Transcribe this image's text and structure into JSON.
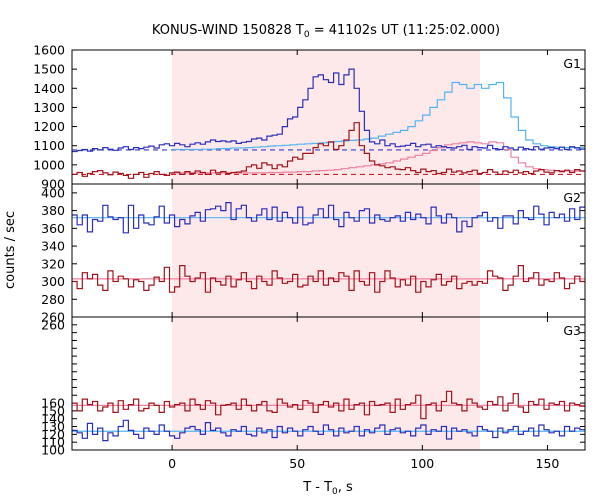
{
  "chart_data": {
    "type": "line",
    "title": {
      "prefix": "KONUS-WIND 150828 T",
      "sub": "0",
      "suffix": " = 41102s UT (11:25:02.000)"
    },
    "xlabel": {
      "prefix": "T - T",
      "sub": "0",
      "suffix": ", s"
    },
    "ylabel": "counts / sec",
    "xlim": [
      -40,
      165
    ],
    "xticks": [
      0,
      50,
      100,
      150
    ],
    "highlight_interval": [
      0,
      123
    ],
    "step_seconds": 2.944,
    "colors": {
      "highlight": "#fde9ea",
      "blue": "#2b2fb8",
      "red": "#a0141c",
      "fit_blue": "#55b4f0",
      "fit_red": "#f080a0",
      "bg_blue": "#3a3ac8",
      "bg_red": "#cc1f2a"
    },
    "panels": [
      {
        "label": "G1",
        "ylim": [
          900,
          1600
        ],
        "yticks": [
          900,
          1000,
          1100,
          1200,
          1300,
          1400,
          1500,
          1600
        ],
        "series": [
          {
            "color_key": "blue",
            "values": [
              1070,
              1075,
              1080,
              1072,
              1085,
              1078,
              1090,
              1082,
              1076,
              1088,
              1095,
              1080,
              1090,
              1085,
              1092,
              1098,
              1088,
              1105,
              1110,
              1100,
              1112,
              1105,
              1095,
              1108,
              1115,
              1108,
              1120,
              1130,
              1122,
              1125,
              1120,
              1125,
              1112,
              1118,
              1122,
              1135,
              1140,
              1130,
              1150,
              1155,
              1160,
              1200,
              1240,
              1250,
              1300,
              1340,
              1400,
              1460,
              1470,
              1445,
              1430,
              1480,
              1420,
              1470,
              1500,
              1400,
              1280,
              1180,
              1120,
              1110,
              1130,
              1100,
              1110,
              1095,
              1098,
              1102,
              1112,
              1095,
              1105,
              1108,
              1092,
              1100,
              1095,
              1090,
              1088,
              1095,
              1102,
              1080,
              1095,
              1090,
              1088,
              1102,
              1085,
              1080,
              1095,
              1088,
              1078,
              1092,
              1085,
              1080,
              1095,
              1082,
              1088,
              1090,
              1085,
              1092,
              1080,
              1095,
              1088,
              1082
            ]
          },
          {
            "color_key": "red",
            "values": [
              950,
              960,
              940,
              955,
              965,
              970,
              958,
              948,
              962,
              955,
              945,
              930,
              950,
              960,
              935,
              955,
              965,
              950,
              945,
              958,
              962,
              950,
              965,
              955,
              968,
              960,
              950,
              972,
              958,
              965,
              955,
              960,
              962,
              968,
              990,
              1000,
              982,
              1010,
              1000,
              980,
              1000,
              990,
              1020,
              1040,
              1030,
              1060,
              1060,
              1090,
              1110,
              1100,
              1120,
              1080,
              1100,
              1130,
              1180,
              1220,
              1100,
              1060,
              1020,
              1000,
              995,
              985,
              990,
              978,
              975,
              985,
              970,
              960,
              978,
              965,
              970,
              955,
              960,
              978,
              962,
              968,
              958,
              965,
              972,
              955,
              960,
              975,
              962,
              950,
              968,
              960,
              972,
              958,
              965,
              955,
              968,
              975,
              962,
              958,
              970,
              965,
              972,
              960,
              975,
              968
            ]
          }
        ],
        "fits": [
          {
            "color_key": "fit_blue",
            "values": [
              1080,
              1080,
              1080,
              1080,
              1082,
              1082,
              1085,
              1085,
              1088,
              1088,
              1090,
              1092,
              1095,
              1098,
              1100,
              1102,
              1105,
              1108,
              1110,
              1112,
              1115,
              1118,
              1122,
              1125,
              1128,
              1130,
              1135,
              1140,
              1150,
              1160,
              1170,
              1180,
              1200,
              1230,
              1260,
              1300,
              1340,
              1380,
              1430,
              1420,
              1400,
              1420,
              1400,
              1420,
              1430,
              1350,
              1250,
              1180,
              1130,
              1110,
              1100,
              1095,
              1092,
              1090,
              1090,
              1090,
              1090,
              1090,
              1090,
              1090,
              1090,
              1090,
              1090,
              1090,
              1090,
              1090,
              1090,
              1090,
              1090,
              1090,
              1090
            ]
          },
          {
            "color_key": "fit_red",
            "values": [
              958,
              958,
              958,
              958,
              958,
              958,
              958,
              958,
              958,
              958,
              958,
              958,
              958,
              960,
              960,
              962,
              962,
              965,
              965,
              968,
              970,
              972,
              975,
              980,
              985,
              990,
              995,
              1000,
              1005,
              1010,
              1020,
              1030,
              1040,
              1050,
              1060,
              1075,
              1090,
              1105,
              1110,
              1115,
              1120,
              1115,
              1110,
              1120,
              1115,
              1080,
              1040,
              1010,
              990,
              980,
              975,
              972,
              970,
              968,
              968,
              968,
              968,
              968,
              968,
              968,
              968,
              968,
              968,
              968,
              968,
              968,
              968,
              968,
              968,
              968,
              968
            ]
          }
        ],
        "fit_start": 0,
        "backgrounds": [
          {
            "color_key": "bg_blue",
            "value": 1078
          },
          {
            "color_key": "bg_red",
            "value": 950
          }
        ]
      },
      {
        "label": "G2",
        "ylim": [
          260,
          410
        ],
        "yticks": [
          260,
          280,
          300,
          320,
          340,
          360,
          380,
          400
        ],
        "series": [
          {
            "color_key": "blue",
            "values": [
              375,
              364,
              375,
              356,
              370,
              368,
              386,
              373,
              370,
              372,
              355,
              386,
              360,
              375,
              366,
              364,
              373,
              385,
              366,
              375,
              362,
              370,
              365,
              374,
              378,
              368,
              381,
              382,
              385,
              380,
              389,
              370,
              382,
              386,
              372,
              368,
              375,
              382,
              370,
              384,
              368,
              378,
              372,
              366,
              384,
              364,
              366,
              375,
              382,
              372,
              386,
              370,
              362,
              378,
              372,
              368,
              380,
              382,
              366,
              375,
              370,
              368,
              372,
              374,
              368,
              378,
              370,
              376,
              372,
              365,
              384,
              374,
              366,
              376,
              372,
              356,
              368,
              362,
              372,
              374,
              378,
              368,
              372,
              360,
              374,
              374,
              365,
              380,
              372,
              370,
              385,
              376,
              364,
              378,
              372,
              376,
              368,
              382,
              370,
              384
            ]
          },
          {
            "color_key": "red",
            "values": [
              300,
              292,
              310,
              303,
              308,
              296,
              290,
              312,
              300,
              306,
              303,
              294,
              302,
              300,
              290,
              296,
              305,
              300,
              316,
              288,
              294,
              318,
              306,
              300,
              304,
              310,
              288,
              304,
              300,
              296,
              306,
              294,
              302,
              310,
              300,
              292,
              306,
              300,
              296,
              312,
              304,
              298,
              300,
              308,
              294,
              296,
              306,
              300,
              312,
              296,
              304,
              300,
              310,
              306,
              290,
              312,
              300,
              296,
              310,
              288,
              300,
              312,
              304,
              294,
              302,
              296,
              306,
              288,
              300,
              294,
              302,
              308,
              296,
              300,
              306,
              292,
              298,
              300,
              296,
              300,
              298,
              312,
              306,
              304,
              290,
              296,
              306,
              318,
              300,
              304,
              310,
              296,
              302,
              300,
              310,
              304,
              292,
              298,
              306,
              300
            ]
          }
        ],
        "fits": [
          {
            "color_key": "fit_blue",
            "values": [
              372,
              372
            ]
          },
          {
            "color_key": "fit_red",
            "values": [
              303,
              303
            ]
          }
        ],
        "fit_start": -40,
        "fit_end": 165
      },
      {
        "label": "G3",
        "ylim": [
          100,
          270
        ],
        "yticks": [
          100,
          110,
          120,
          130,
          140,
          150,
          160,
          170,
          180,
          190,
          200,
          210,
          220,
          230,
          240,
          250,
          260
        ],
        "tick_labels_shown": [
          100,
          110,
          120,
          130,
          140,
          150,
          160,
          260
        ],
        "series": [
          {
            "color_key": "blue",
            "values": [
              125,
              122,
              115,
              134,
              120,
              128,
              112,
              122,
              118,
              130,
              138,
              125,
              120,
              115,
              128,
              124,
              120,
              132,
              124,
              118,
              115,
              122,
              128,
              130,
              126,
              120,
              135,
              125,
              128,
              122,
              118,
              126,
              124,
              130,
              120,
              118,
              128,
              122,
              126,
              116,
              130,
              122,
              128,
              124,
              118,
              126,
              130,
              124,
              120,
              132,
              126,
              118,
              128,
              122,
              124,
              130,
              118,
              126,
              122,
              128,
              132,
              120,
              126,
              128,
              122,
              124,
              118,
              128,
              132,
              120,
              126,
              124,
              130,
              114,
              128,
              124,
              126,
              122,
              118,
              130,
              126,
              124,
              116,
              128,
              122,
              126,
              130,
              120,
              124,
              128,
              118,
              132,
              126,
              122,
              124,
              118,
              130,
              124,
              128,
              126
            ]
          },
          {
            "color_key": "red",
            "values": [
              160,
              150,
              165,
              158,
              162,
              150,
              155,
              160,
              148,
              163,
              152,
              158,
              165,
              150,
              153,
              160,
              157,
              148,
              162,
              155,
              158,
              160,
              150,
              165,
              158,
              152,
              163,
              160,
              145,
              157,
              158,
              160,
              152,
              165,
              157,
              150,
              158,
              162,
              150,
              148,
              165,
              160,
              155,
              158,
              152,
              163,
              160,
              148,
              158,
              162,
              155,
              160,
              150,
              165,
              152,
              158,
              160,
              145,
              162,
              157,
              158,
              160,
              148,
              165,
              152,
              158,
              160,
              170,
              140,
              158,
              160,
              150,
              162,
              175,
              160,
              158,
              150,
              165,
              160,
              155,
              152,
              162,
              158,
              168,
              150,
              160,
              172,
              155,
              148,
              162,
              158,
              165,
              152,
              160,
              158,
              162,
              150,
              160,
              158,
              156
            ]
          }
        ],
        "fits": [
          {
            "color_key": "fit_blue",
            "values": [
              124,
              124
            ]
          },
          {
            "color_key": "fit_red",
            "values": [
              157,
              157
            ]
          }
        ],
        "fit_start": -40,
        "fit_end": 165
      }
    ]
  }
}
